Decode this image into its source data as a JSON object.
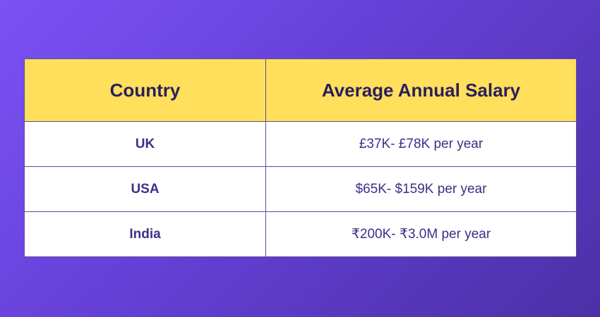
{
  "table": {
    "headers": {
      "country": "Country",
      "salary": "Average Annual Salary"
    },
    "rows": [
      {
        "country": "UK",
        "salary": "£37K- £78K per year"
      },
      {
        "country": "USA",
        "salary": "$65K- $159K per year"
      },
      {
        "country": "India",
        "salary": "₹200K- ₹3.0M per year"
      }
    ]
  },
  "colors": {
    "background_start": "#7b52f5",
    "background_end": "#4a30a6",
    "header_fill": "#ffdf5c",
    "header_text": "#2a1f5c",
    "body_text": "#3d2f8a",
    "border": "#5b4f96"
  }
}
